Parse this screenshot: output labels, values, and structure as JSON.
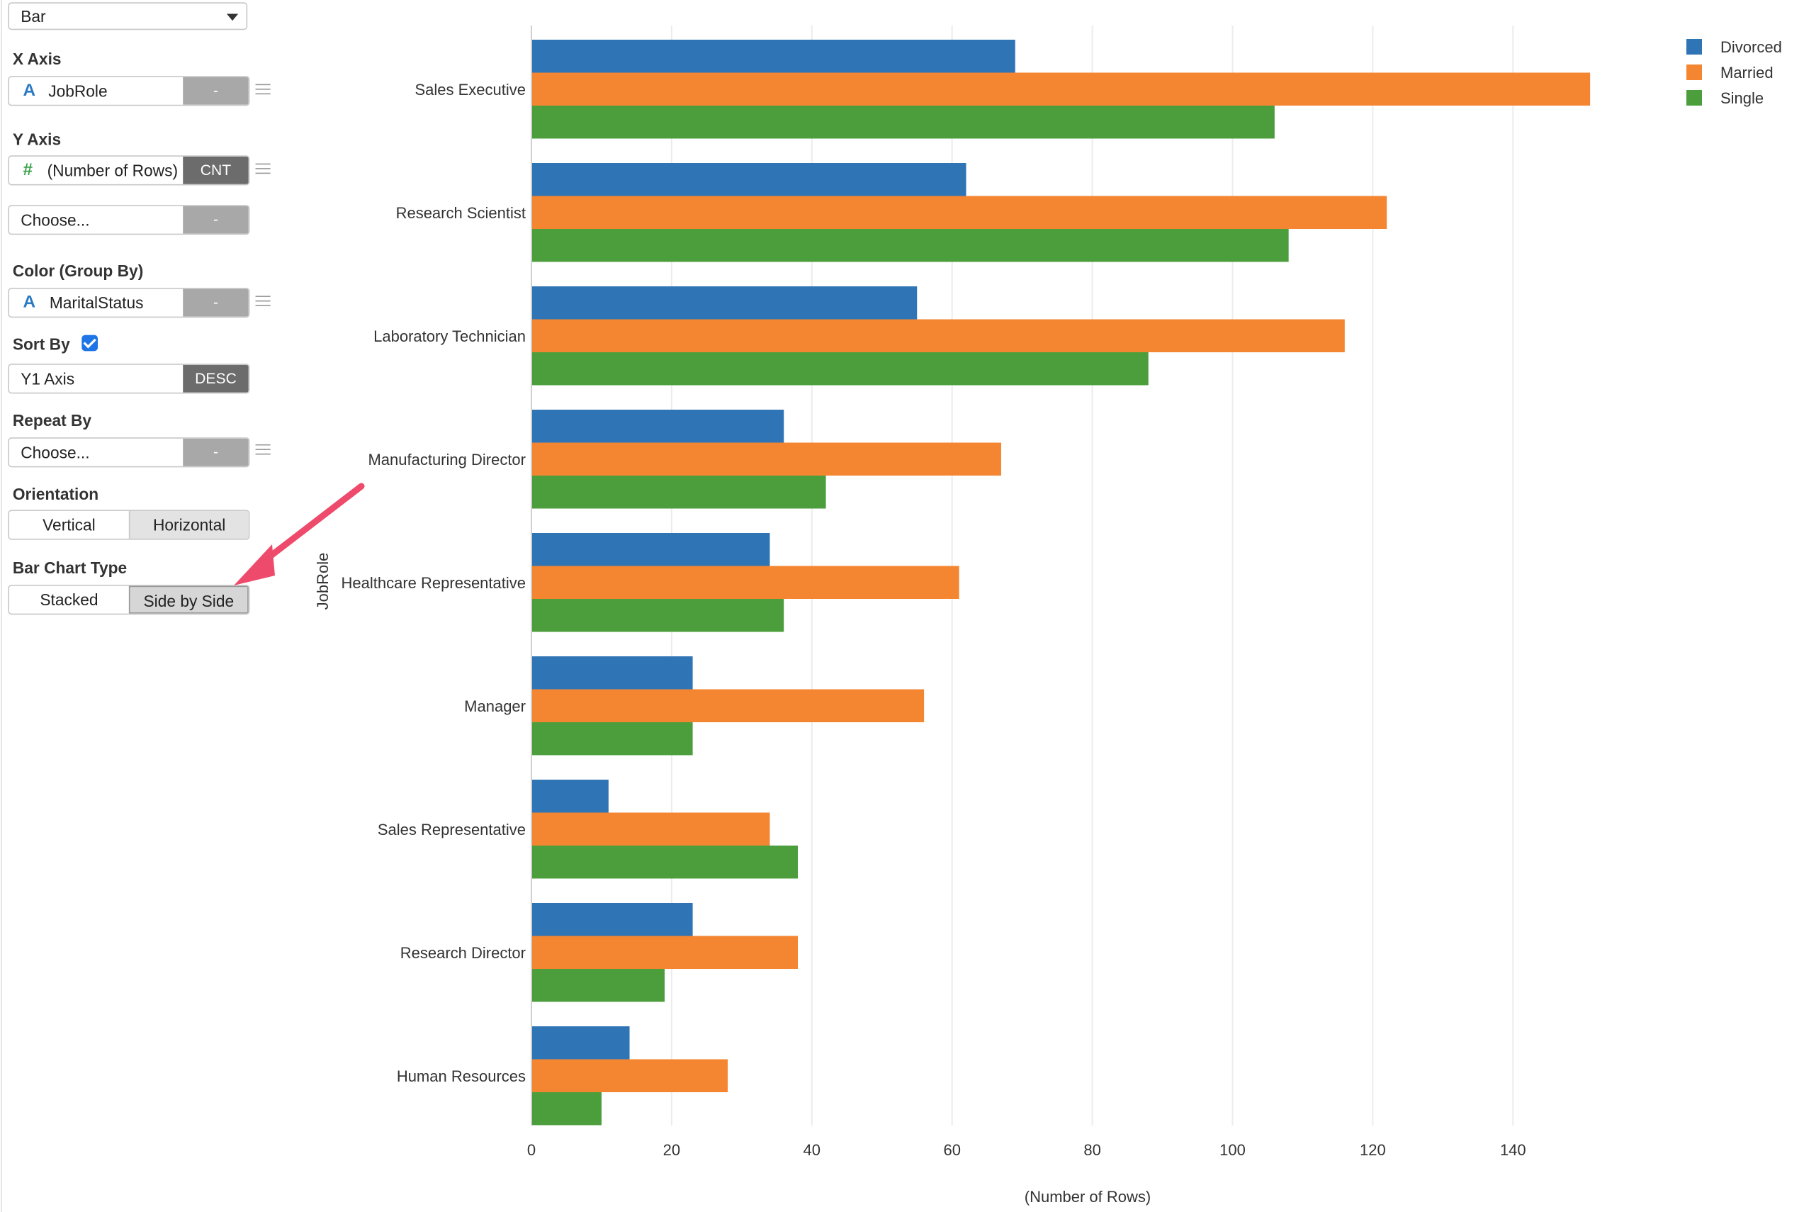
{
  "chart_type_select": {
    "value": "Bar"
  },
  "x_axis": {
    "label": "X Axis",
    "field": "JobRole",
    "field_type_icon": "A",
    "button": "-"
  },
  "y_axis": {
    "label": "Y Axis",
    "field": "(Number of Rows)",
    "field_type_icon": "#",
    "button": "CNT",
    "second_field": "Choose...",
    "second_button": "-"
  },
  "color": {
    "label": "Color (Group By)",
    "field": "MaritalStatus",
    "field_type_icon": "A",
    "button": "-"
  },
  "sort": {
    "label": "Sort By",
    "checked": true,
    "field": "Y1 Axis",
    "button": "DESC"
  },
  "repeat": {
    "label": "Repeat By",
    "field": "Choose...",
    "button": "-"
  },
  "orientation": {
    "label": "Orientation",
    "options": [
      "Vertical",
      "Horizontal"
    ],
    "selected": "Horizontal"
  },
  "bar_type": {
    "label": "Bar Chart Type",
    "options": [
      "Stacked",
      "Side by Side"
    ],
    "selected": "Side by Side"
  },
  "annotation_arrow_color": "#ee4a6b",
  "chart_data": {
    "type": "bar",
    "orientation": "horizontal",
    "categories": [
      "Sales Executive",
      "Research Scientist",
      "Laboratory Technician",
      "Manufacturing Director",
      "Healthcare Representative",
      "Manager",
      "Sales Representative",
      "Research Director",
      "Human Resources"
    ],
    "series": [
      {
        "name": "Divorced",
        "color": "#2f74b5",
        "values": [
          69,
          62,
          55,
          36,
          34,
          23,
          11,
          23,
          14
        ]
      },
      {
        "name": "Married",
        "color": "#f58631",
        "values": [
          151,
          122,
          116,
          67,
          61,
          56,
          34,
          38,
          28
        ]
      },
      {
        "name": "Single",
        "color": "#4c9e3c",
        "values": [
          106,
          108,
          88,
          42,
          36,
          23,
          38,
          19,
          10
        ]
      }
    ],
    "xlabel": "(Number of Rows)",
    "ylabel": "JobRole",
    "xlim": [
      0,
      160
    ],
    "xticks": [
      0,
      20,
      40,
      60,
      80,
      100,
      120,
      140
    ],
    "grid": true,
    "legend_position": "top-right"
  }
}
